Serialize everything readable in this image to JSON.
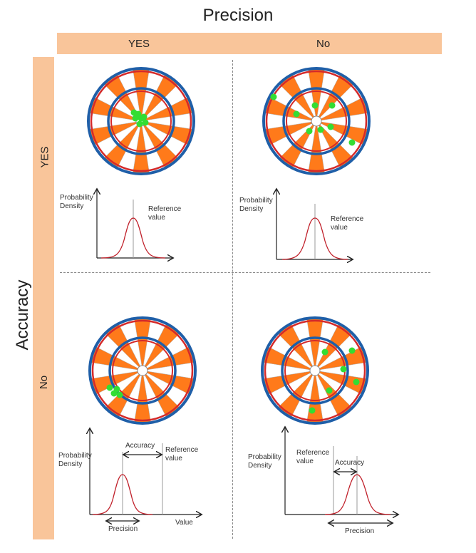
{
  "title_top": "Precision",
  "title_left": "Accuracy",
  "columns": [
    "YES",
    "No"
  ],
  "rows": [
    "YES",
    "No"
  ],
  "colors": {
    "band": "#f9c59a",
    "board_orange": "#ff7a1a",
    "board_blue": "#1f5fa8",
    "board_red": "#d42a2a",
    "dots": "#33dd33",
    "curve": "#c0202a"
  },
  "plots": {
    "tl": {
      "ylabel": [
        "Probability",
        "Density"
      ],
      "ref": [
        "Reference",
        "value"
      ]
    },
    "tr": {
      "ylabel": [
        "Probability",
        "Density"
      ],
      "ref": [
        "Reference",
        "value"
      ]
    },
    "bl": {
      "ylabel": [
        "Probability",
        "Density"
      ],
      "ref": [
        "Reference",
        "value"
      ],
      "accuracy": "Accuracy",
      "precision": "Precision",
      "xlabel": "Value"
    },
    "br": {
      "ylabel": [
        "Probability",
        "Density"
      ],
      "ref": [
        "Reference",
        "value"
      ],
      "accuracy": "Accuracy",
      "precision": "Precision"
    }
  }
}
